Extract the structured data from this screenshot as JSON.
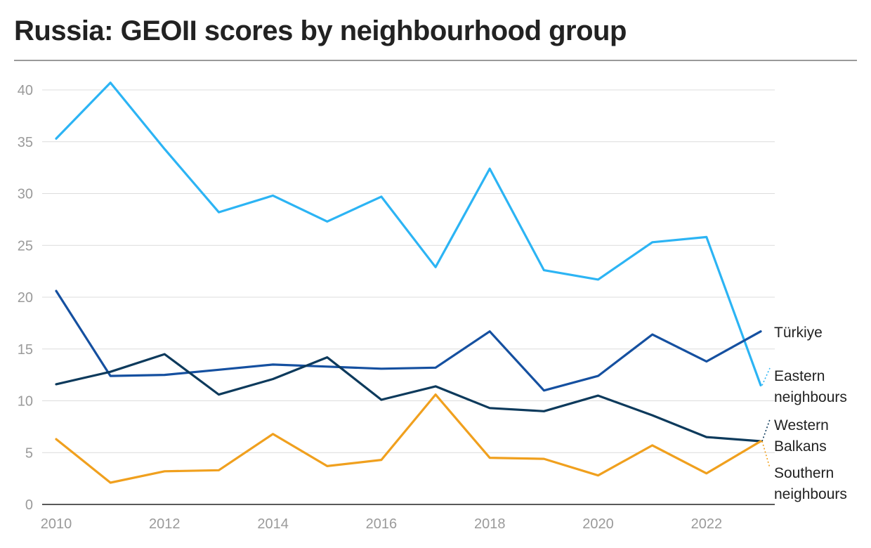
{
  "title": "Russia: GEOII scores by neighbourhood group",
  "chart_data": {
    "type": "line",
    "title": "Russia: GEOII scores by neighbourhood group",
    "xlabel": "",
    "ylabel": "",
    "x": [
      2010,
      2011,
      2012,
      2013,
      2014,
      2015,
      2016,
      2017,
      2018,
      2019,
      2020,
      2021,
      2022,
      2023
    ],
    "xticks": [
      2010,
      2012,
      2014,
      2016,
      2018,
      2020,
      2022
    ],
    "yticks": [
      0,
      5,
      10,
      15,
      20,
      25,
      30,
      35,
      40
    ],
    "xlim": [
      2010,
      2023
    ],
    "ylim": [
      0,
      42
    ],
    "grid": "horizontal",
    "legend": "direct labels at line ends (right)",
    "series": [
      {
        "name": "Türkiye",
        "label_lines": [
          "Türkiye"
        ],
        "color": "#1550a0",
        "values": [
          20.6,
          12.4,
          12.5,
          13.0,
          13.5,
          13.3,
          13.1,
          13.2,
          16.7,
          11.0,
          12.4,
          16.4,
          13.8,
          16.7
        ]
      },
      {
        "name": "Eastern neighbours",
        "label_lines": [
          "Eastern",
          "neighbours"
        ],
        "color": "#2cb4f4",
        "values": [
          35.3,
          40.7,
          34.3,
          28.2,
          29.8,
          27.3,
          29.7,
          22.9,
          32.4,
          22.6,
          21.7,
          25.3,
          25.8,
          11.5
        ]
      },
      {
        "name": "Western Balkans",
        "label_lines": [
          "Western",
          "Balkans"
        ],
        "color": "#0d3a5c",
        "values": [
          11.6,
          12.8,
          14.5,
          10.6,
          12.1,
          14.2,
          10.1,
          11.4,
          9.3,
          9.0,
          10.5,
          8.6,
          6.5,
          6.1
        ]
      },
      {
        "name": "Southern neighbours",
        "label_lines": [
          "Southern",
          "neighbours"
        ],
        "color": "#f0a01e",
        "values": [
          6.3,
          2.1,
          3.2,
          3.3,
          6.8,
          3.7,
          4.3,
          10.6,
          4.5,
          4.4,
          2.8,
          5.7,
          3.0,
          6.1
        ]
      }
    ]
  }
}
